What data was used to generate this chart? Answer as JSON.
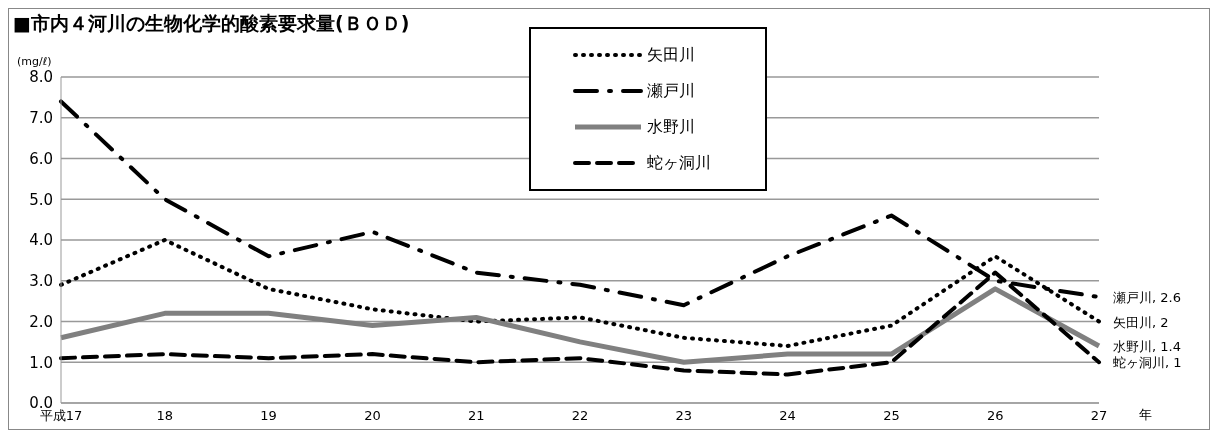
{
  "chart_data": {
    "type": "line",
    "title": "■市内４河川の生物化学的酸素要求量(ＢＯＤ)",
    "ylabel": "(mg/ℓ)",
    "xlabel": "年",
    "categories": [
      "平成17",
      "18",
      "19",
      "20",
      "21",
      "22",
      "23",
      "24",
      "25",
      "26",
      "27"
    ],
    "series": [
      {
        "name": "矢田川",
        "color": "#000000",
        "line_style": "dotted",
        "values": [
          2.9,
          4.0,
          2.8,
          2.3,
          2.0,
          2.1,
          1.6,
          1.4,
          1.9,
          3.6,
          2.0
        ]
      },
      {
        "name": "瀬戸川",
        "color": "#000000",
        "line_style": "dashdot",
        "values": [
          7.4,
          5.0,
          3.6,
          4.2,
          3.2,
          2.9,
          2.4,
          3.6,
          4.6,
          3.0,
          2.6
        ]
      },
      {
        "name": "水野川",
        "color": "#808080",
        "line_style": "solid",
        "values": [
          1.6,
          2.2,
          2.2,
          1.9,
          2.1,
          1.5,
          1.0,
          1.2,
          1.2,
          2.8,
          1.4
        ]
      },
      {
        "name": "蛇ヶ洞川",
        "color": "#000000",
        "line_style": "dashed",
        "values": [
          1.1,
          1.2,
          1.1,
          1.2,
          1.0,
          1.1,
          0.8,
          0.7,
          1.0,
          3.2,
          1.0
        ]
      }
    ],
    "ylim": [
      0,
      8
    ],
    "yticks": [
      {
        "value": 0,
        "label": "0.0"
      },
      {
        "value": 1,
        "label": "1.0"
      },
      {
        "value": 2,
        "label": "2.0"
      },
      {
        "value": 3,
        "label": "3.0"
      },
      {
        "value": 4,
        "label": "4.0"
      },
      {
        "value": 5,
        "label": "5.0"
      },
      {
        "value": 6,
        "label": "6.0"
      },
      {
        "value": 7,
        "label": "7.0"
      },
      {
        "value": 8,
        "label": "8.0"
      }
    ],
    "grid": "y",
    "legend": "top",
    "marker": "none",
    "annotations": [
      {
        "text": "瀬戸川, 2.6",
        "x": "27",
        "y": 2.6
      },
      {
        "text": "矢田川, 2",
        "x": "27",
        "y": 2
      },
      {
        "text": "水野川, 1.4",
        "x": "27",
        "y": 1.4
      },
      {
        "text": "蛇ヶ洞川, 1",
        "x": "27",
        "y": 1
      }
    ]
  }
}
